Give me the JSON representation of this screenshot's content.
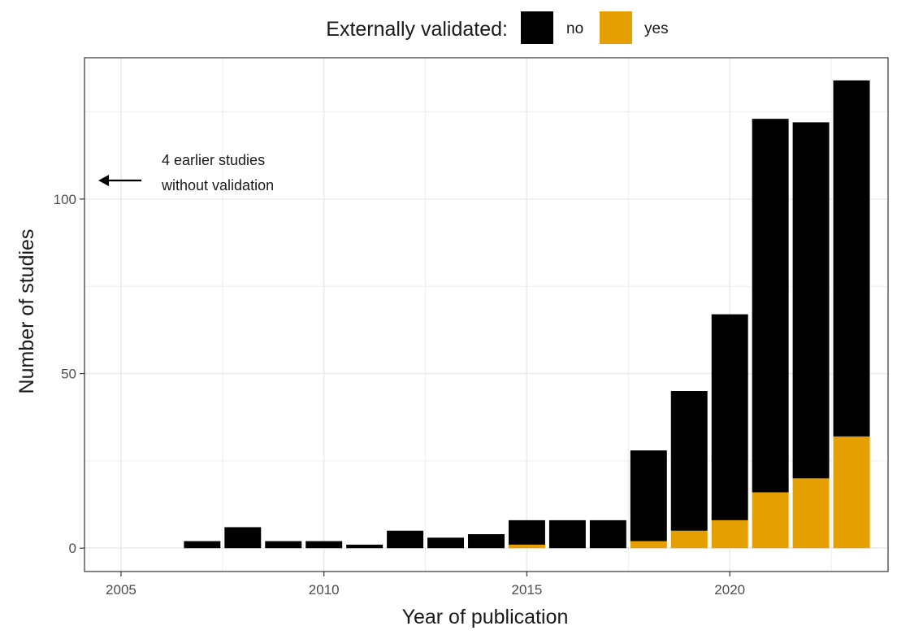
{
  "chart_data": {
    "type": "bar",
    "stacked": true,
    "x": [
      2007,
      2008,
      2009,
      2010,
      2011,
      2012,
      2013,
      2014,
      2015,
      2016,
      2017,
      2018,
      2019,
      2020,
      2021,
      2022,
      2023
    ],
    "series": [
      {
        "name": "yes",
        "color": "#E69F00",
        "values": [
          0,
          0,
          0,
          0,
          0,
          0,
          0,
          0,
          1,
          0,
          0,
          2,
          5,
          8,
          16,
          20,
          32
        ]
      },
      {
        "name": "no",
        "color": "#000000",
        "values": [
          2,
          6,
          2,
          2,
          1,
          5,
          3,
          4,
          7,
          8,
          8,
          26,
          40,
          59,
          107,
          102,
          102
        ]
      }
    ],
    "xlabel": "Year of publication",
    "ylabel": "Number of studies",
    "xlim": [
      2004.1,
      2023.9
    ],
    "ylim": [
      -6.7,
      140.5
    ],
    "x_ticks": [
      2005,
      2010,
      2015,
      2020
    ],
    "y_ticks": [
      0,
      50,
      100
    ],
    "grid": true,
    "legend": {
      "title": "Externally validated:",
      "position": "top",
      "entries": [
        "no",
        "yes"
      ]
    },
    "annotation": {
      "lines": [
        "4 earlier studies",
        "without validation"
      ],
      "arrow": "pointing left"
    }
  }
}
